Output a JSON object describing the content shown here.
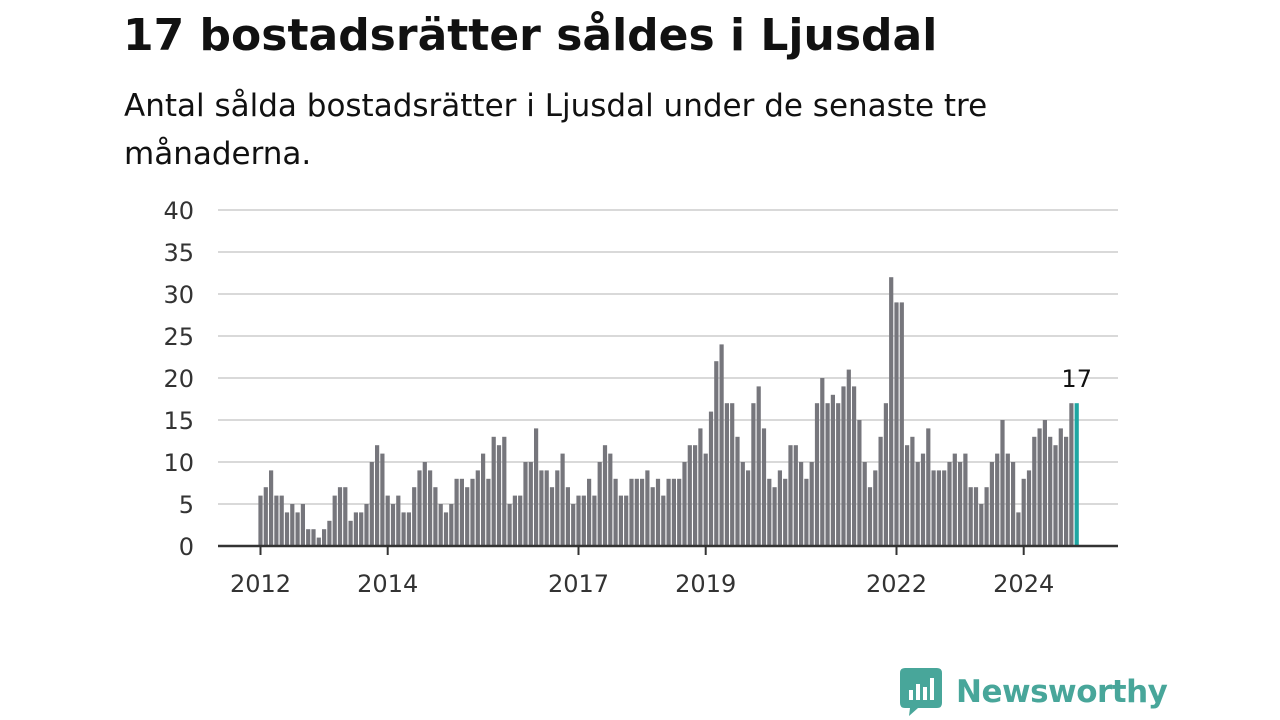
{
  "header": {
    "title": "17 bostadsrätter såldes i Ljusdal",
    "subtitle": "Antal sålda bostadsrätter i Ljusdal under de senaste tre månaderna."
  },
  "brand": {
    "name": "Newsworthy",
    "icon": "newsworthy-chart-bubble-icon",
    "color": "#48a69a"
  },
  "colors": {
    "bar": "#76767c",
    "highlight": "#1ea6a2",
    "grid": "#d9d9d9",
    "axis": "#333333"
  },
  "chart_data": {
    "type": "bar",
    "title": "17 bostadsrätter såldes i Ljusdal",
    "subtitle": "Antal sålda bostadsrätter i Ljusdal under de senaste tre månaderna.",
    "xlabel": "",
    "ylabel": "",
    "ylim": [
      0,
      40
    ],
    "yticks": [
      0,
      5,
      10,
      15,
      20,
      25,
      30,
      35,
      40
    ],
    "xticks": [
      {
        "label": "2012",
        "index": 0
      },
      {
        "label": "2014",
        "index": 24
      },
      {
        "label": "2017",
        "index": 60
      },
      {
        "label": "2019",
        "index": 84
      },
      {
        "label": "2022",
        "index": 120
      },
      {
        "label": "2024",
        "index": 144
      }
    ],
    "grid": true,
    "start": "2012-01",
    "frequency": "monthly",
    "values": [
      6,
      7,
      9,
      6,
      6,
      4,
      5,
      4,
      5,
      2,
      2,
      1,
      2,
      3,
      6,
      7,
      7,
      3,
      4,
      4,
      5,
      10,
      12,
      11,
      6,
      5,
      6,
      4,
      4,
      7,
      9,
      10,
      9,
      7,
      5,
      4,
      5,
      8,
      8,
      7,
      8,
      9,
      11,
      8,
      13,
      12,
      13,
      5,
      6,
      6,
      10,
      10,
      14,
      9,
      9,
      7,
      9,
      11,
      7,
      5,
      6,
      6,
      8,
      6,
      10,
      12,
      11,
      8,
      6,
      6,
      8,
      8,
      8,
      9,
      7,
      8,
      6,
      8,
      8,
      8,
      10,
      12,
      12,
      14,
      11,
      16,
      22,
      24,
      17,
      17,
      13,
      10,
      9,
      17,
      19,
      14,
      8,
      7,
      9,
      8,
      12,
      12,
      10,
      8,
      10,
      17,
      20,
      17,
      18,
      17,
      19,
      21,
      19,
      15,
      10,
      7,
      9,
      13,
      17,
      32,
      29,
      29,
      12,
      13,
      10,
      11,
      14,
      9,
      9,
      9,
      10,
      11,
      10,
      11,
      7,
      7,
      5,
      7,
      10,
      11,
      15,
      11,
      10,
      4,
      8,
      9,
      13,
      14,
      15,
      13,
      12,
      14,
      13,
      17,
      17
    ],
    "highlight_index": 154,
    "highlight_label": "17"
  }
}
